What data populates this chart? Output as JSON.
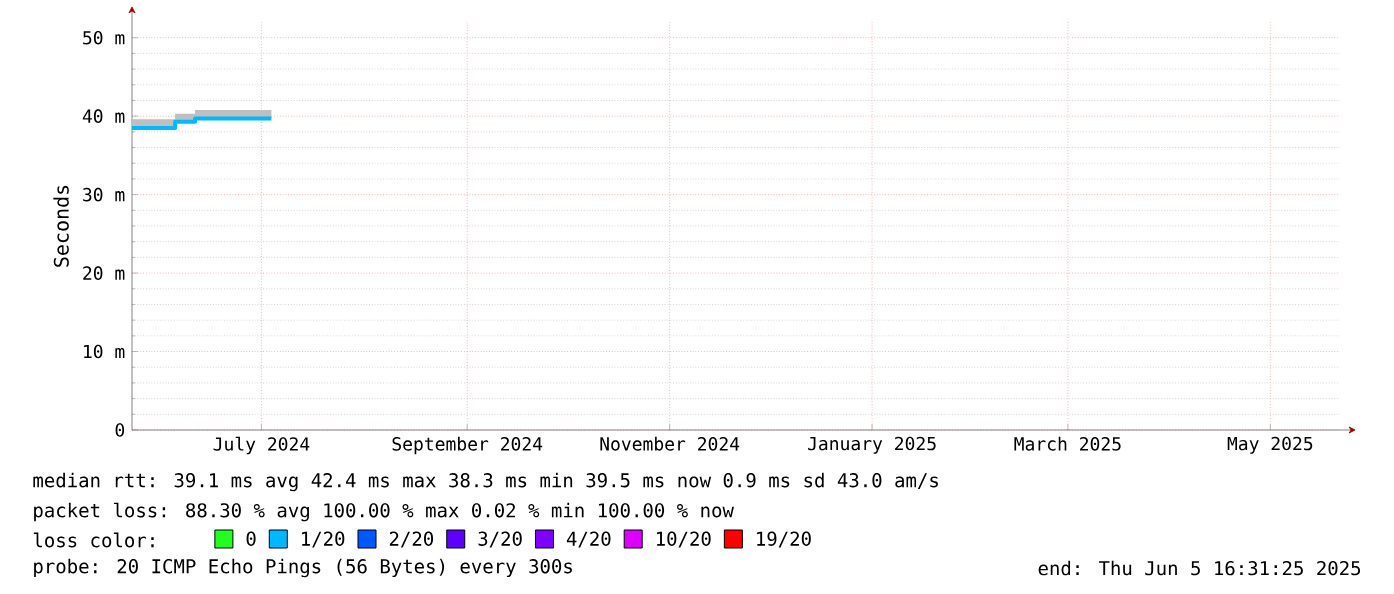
{
  "chart_data": {
    "type": "step",
    "ylabel": "Seconds",
    "legend_title": "loss color:",
    "legend": "bottom",
    "grid": true,
    "xlim": [
      "2024-06-06",
      "2025-06-05"
    ],
    "xticks": [
      {
        "value": "2024-07-15",
        "label": "July 2024"
      },
      {
        "value": "2024-09-15",
        "label": "September 2024"
      },
      {
        "value": "2024-11-15",
        "label": "November 2024"
      },
      {
        "value": "2025-01-15",
        "label": "January 2025"
      },
      {
        "value": "2025-03-15",
        "label": "March 2025"
      },
      {
        "value": "2025-05-15",
        "label": "May 2025"
      }
    ],
    "ylim": [
      0,
      52
    ],
    "yticks": [
      0,
      {
        "value": 10,
        "label": "10 m"
      },
      {
        "value": 20,
        "label": "20 m"
      },
      {
        "value": 30,
        "label": "30 m"
      },
      {
        "value": 40,
        "label": "40 m"
      },
      {
        "value": 50,
        "label": "50 m"
      }
    ],
    "series": [
      {
        "name": "0",
        "color": "#20ff20"
      },
      {
        "name": "1/20",
        "color": "#00b8ff",
        "x": [
          "2024-06-06",
          "2024-06-19",
          "2024-06-25",
          "2024-07-18"
        ],
        "values": [
          38.5,
          39.3,
          39.7,
          39.7
        ],
        "lower": [
          38.5,
          39.3,
          39.7,
          39.7
        ],
        "upper": [
          39.6,
          40.3,
          40.8,
          40.5
        ]
      },
      {
        "name": "2/20",
        "color": "#0059ff"
      },
      {
        "name": "3/20",
        "color": "#5e00ff"
      },
      {
        "name": "4/20",
        "color": "#7e00ff"
      },
      {
        "name": "10/20",
        "color": "#dd00ff"
      },
      {
        "name": "19/20",
        "color": "#ff0000"
      }
    ],
    "annotations": [
      "median rtt:  39.1 ms avg  42.4 ms max  38.3 ms min  39.5 ms now  0.9 ms sd  43.0   am/s",
      "packet loss: 88.30 % avg  100.00 % max  0.02 % min  100.00 % now",
      "probe:       20 ICMP Echo Pings (56 Bytes) every 300s",
      "end: Thu Jun  5 16:31:25 2025"
    ]
  }
}
